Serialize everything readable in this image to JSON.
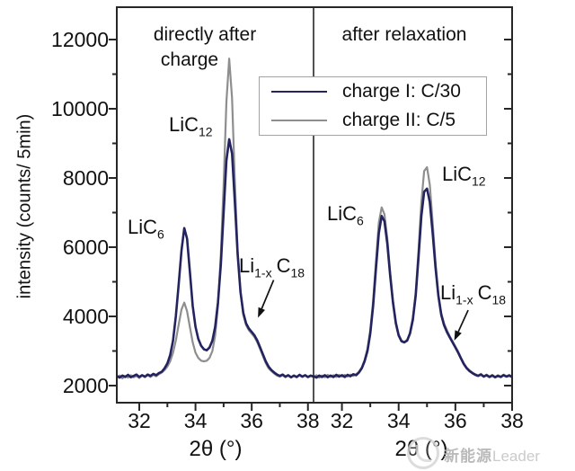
{
  "watermark": {
    "text_cn": "新能源",
    "text_en": "Leader"
  },
  "chart_data": {
    "type": "line",
    "title": "",
    "xlabel": "2θ (°)",
    "ylabel": "intensity (counts/ 5min)",
    "ylim": [
      1506,
      12935
    ],
    "yticks": [
      2000,
      4000,
      6000,
      8000,
      10000,
      12000
    ],
    "yticks_minor": [
      3000,
      5000,
      7000,
      9000,
      11000
    ],
    "grid": false,
    "legend": {
      "position": "top-center",
      "items": [
        {
          "label": "charge I: C/30",
          "color": "#23235f",
          "width": 2.6
        },
        {
          "label": "charge II: C/5",
          "color": "#8e8e8e",
          "width": 2.2
        }
      ]
    },
    "panels": [
      {
        "title_lines": [
          "directly after",
          "charge"
        ],
        "xlim": [
          31.2,
          38.2
        ],
        "xticks": [
          32,
          34,
          36,
          38
        ],
        "xticks_minor": [
          33,
          35,
          37
        ],
        "peak_labels": {
          "lic6": {
            "p1": "LiC",
            "s1": "6"
          },
          "lic12": {
            "p1": "LiC",
            "s1": "12"
          },
          "li1x": {
            "p1": "Li",
            "s1": "1-x",
            "p2": "C",
            "s2": "18"
          }
        },
        "arrow": {
          "from_x": 36.78,
          "from_y": 5050,
          "to_x": 36.22,
          "to_y": 3960
        },
        "series": [
          {
            "name": "charge II: C/5",
            "x_start": 31.2,
            "x_step": 0.1,
            "y": [
              2230,
              2290,
              2210,
              2280,
              2230,
              2300,
              2240,
              2280,
              2220,
              2290,
              2240,
              2300,
              2250,
              2310,
              2270,
              2330,
              2380,
              2450,
              2550,
              2700,
              2950,
              3300,
              3750,
              4200,
              4400,
              4150,
              3700,
              3250,
              2950,
              2800,
              2720,
              2700,
              2720,
              2800,
              3000,
              3450,
              4300,
              5800,
              7800,
              10200,
              11450,
              10300,
              7900,
              5900,
              4700,
              4050,
              3750,
              3600,
              3500,
              3400,
              3250,
              3050,
              2850,
              2650,
              2500,
              2420,
              2350,
              2290,
              2260,
              2300,
              2240,
              2290,
              2230,
              2280,
              2240,
              2300,
              2250,
              2290,
              2240,
              2280,
              2250
            ]
          },
          {
            "name": "charge I: C/30",
            "x_start": 31.2,
            "x_step": 0.1,
            "y": [
              2280,
              2230,
              2290,
              2250,
              2310,
              2240,
              2280,
              2320,
              2250,
              2300,
              2260,
              2320,
              2280,
              2340,
              2300,
              2360,
              2400,
              2500,
              2640,
              2880,
              3300,
              4000,
              4900,
              5900,
              6550,
              6250,
              5300,
              4300,
              3700,
              3350,
              3150,
              3050,
              3020,
              3100,
              3300,
              3700,
              4400,
              5500,
              7000,
              8500,
              9120,
              8700,
              7300,
              5800,
              4700,
              4100,
              3800,
              3650,
              3550,
              3450,
              3300,
              3100,
              2900,
              2700,
              2550,
              2450,
              2380,
              2320,
              2280,
              2320,
              2260,
              2300,
              2240,
              2290,
              2250,
              2310,
              2260,
              2300,
              2250,
              2290,
              2260
            ]
          }
        ]
      },
      {
        "title_lines": [
          "after relaxation"
        ],
        "xlim": [
          31.0,
          38.0
        ],
        "xticks": [
          32,
          34,
          36,
          38
        ],
        "xticks_minor": [
          33,
          35,
          37
        ],
        "peak_labels": {
          "lic6": {
            "p1": "LiC",
            "s1": "6"
          },
          "lic12": {
            "p1": "LiC",
            "s1": "12"
          },
          "li1x": {
            "p1": "Li",
            "s1": "1-x",
            "p2": "C",
            "s2": "18"
          }
        },
        "arrow": {
          "from_x": 36.45,
          "from_y": 4180,
          "to_x": 35.96,
          "to_y": 3300
        },
        "series": [
          {
            "name": "charge II: C/5",
            "x_start": 31.0,
            "x_step": 0.1,
            "y": [
              2240,
              2300,
              2230,
              2290,
              2240,
              2310,
              2250,
              2300,
              2250,
              2310,
              2260,
              2310,
              2260,
              2320,
              2280,
              2330,
              2400,
              2530,
              2740,
              3060,
              3600,
              4450,
              5600,
              6700,
              7150,
              6950,
              6250,
              5300,
              4450,
              3850,
              3480,
              3300,
              3260,
              3320,
              3530,
              3950,
              4700,
              5900,
              7300,
              8200,
              8310,
              7800,
              6700,
              5550,
              4650,
              4100,
              3800,
              3600,
              3430,
              3280,
              3130,
              2980,
              2800,
              2640,
              2520,
              2440,
              2380,
              2330,
              2290,
              2340,
              2270,
              2320,
              2260,
              2310,
              2250,
              2300,
              2260,
              2320,
              2270,
              2310,
              2260
            ]
          },
          {
            "name": "charge I: C/30",
            "x_start": 31.0,
            "x_step": 0.1,
            "y": [
              2270,
              2230,
              2290,
              2250,
              2300,
              2240,
              2290,
              2250,
              2310,
              2260,
              2300,
              2250,
              2310,
              2270,
              2330,
              2300,
              2380,
              2500,
              2700,
              3000,
              3500,
              4300,
              5400,
              6400,
              6900,
              6750,
              6100,
              5200,
              4400,
              3800,
              3450,
              3280,
              3250,
              3300,
              3500,
              3900,
              4600,
              5700,
              6900,
              7600,
              7690,
              7300,
              6400,
              5400,
              4600,
              4050,
              3750,
              3550,
              3400,
              3250,
              3100,
              2950,
              2780,
              2620,
              2500,
              2420,
              2360,
              2310,
              2280,
              2320,
              2260,
              2300,
              2250,
              2290,
              2240,
              2280,
              2250,
              2300,
              2260,
              2290,
              2250
            ]
          }
        ]
      }
    ]
  }
}
